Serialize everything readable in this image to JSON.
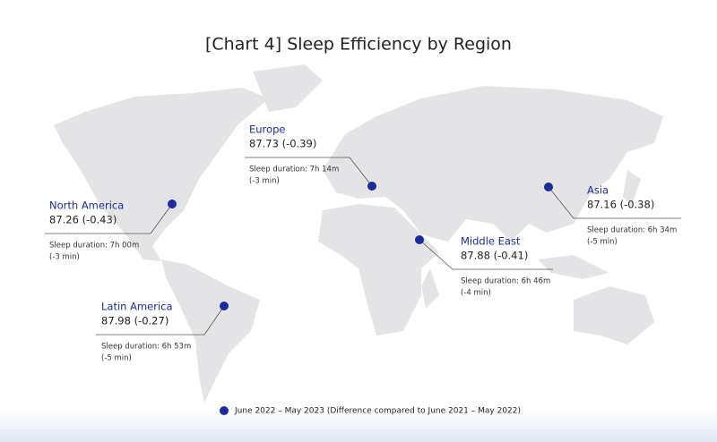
{
  "title": "[Chart 4] Sleep Efficiency by Region",
  "regions": [
    {
      "name": "Europe",
      "score": "87.73 (-0.39)",
      "duration": "Sleep duration: 7h 14m",
      "change": "(-3 min)"
    },
    {
      "name": "North America",
      "score": "87.26 (-0.43)",
      "duration": "Sleep duration: 7h 00m",
      "change": "(-3 min)"
    },
    {
      "name": "Latin America",
      "score": "87.98 (-0.27)",
      "duration": "Sleep duration: 6h 53m",
      "change": "(-5 min)"
    },
    {
      "name": "Middle East",
      "score": "87.88 (-0.41)",
      "duration": "Sleep duration: 6h 46m",
      "change": "(-4 min)"
    },
    {
      "name": "Asia",
      "score": "87.16 (-0.38)",
      "duration": "Sleep duration: 6h 34m",
      "change": "(-5 min)"
    }
  ],
  "legend": "June 2022 – May 2023 (Difference compared to June 2021 – May 2022)"
}
